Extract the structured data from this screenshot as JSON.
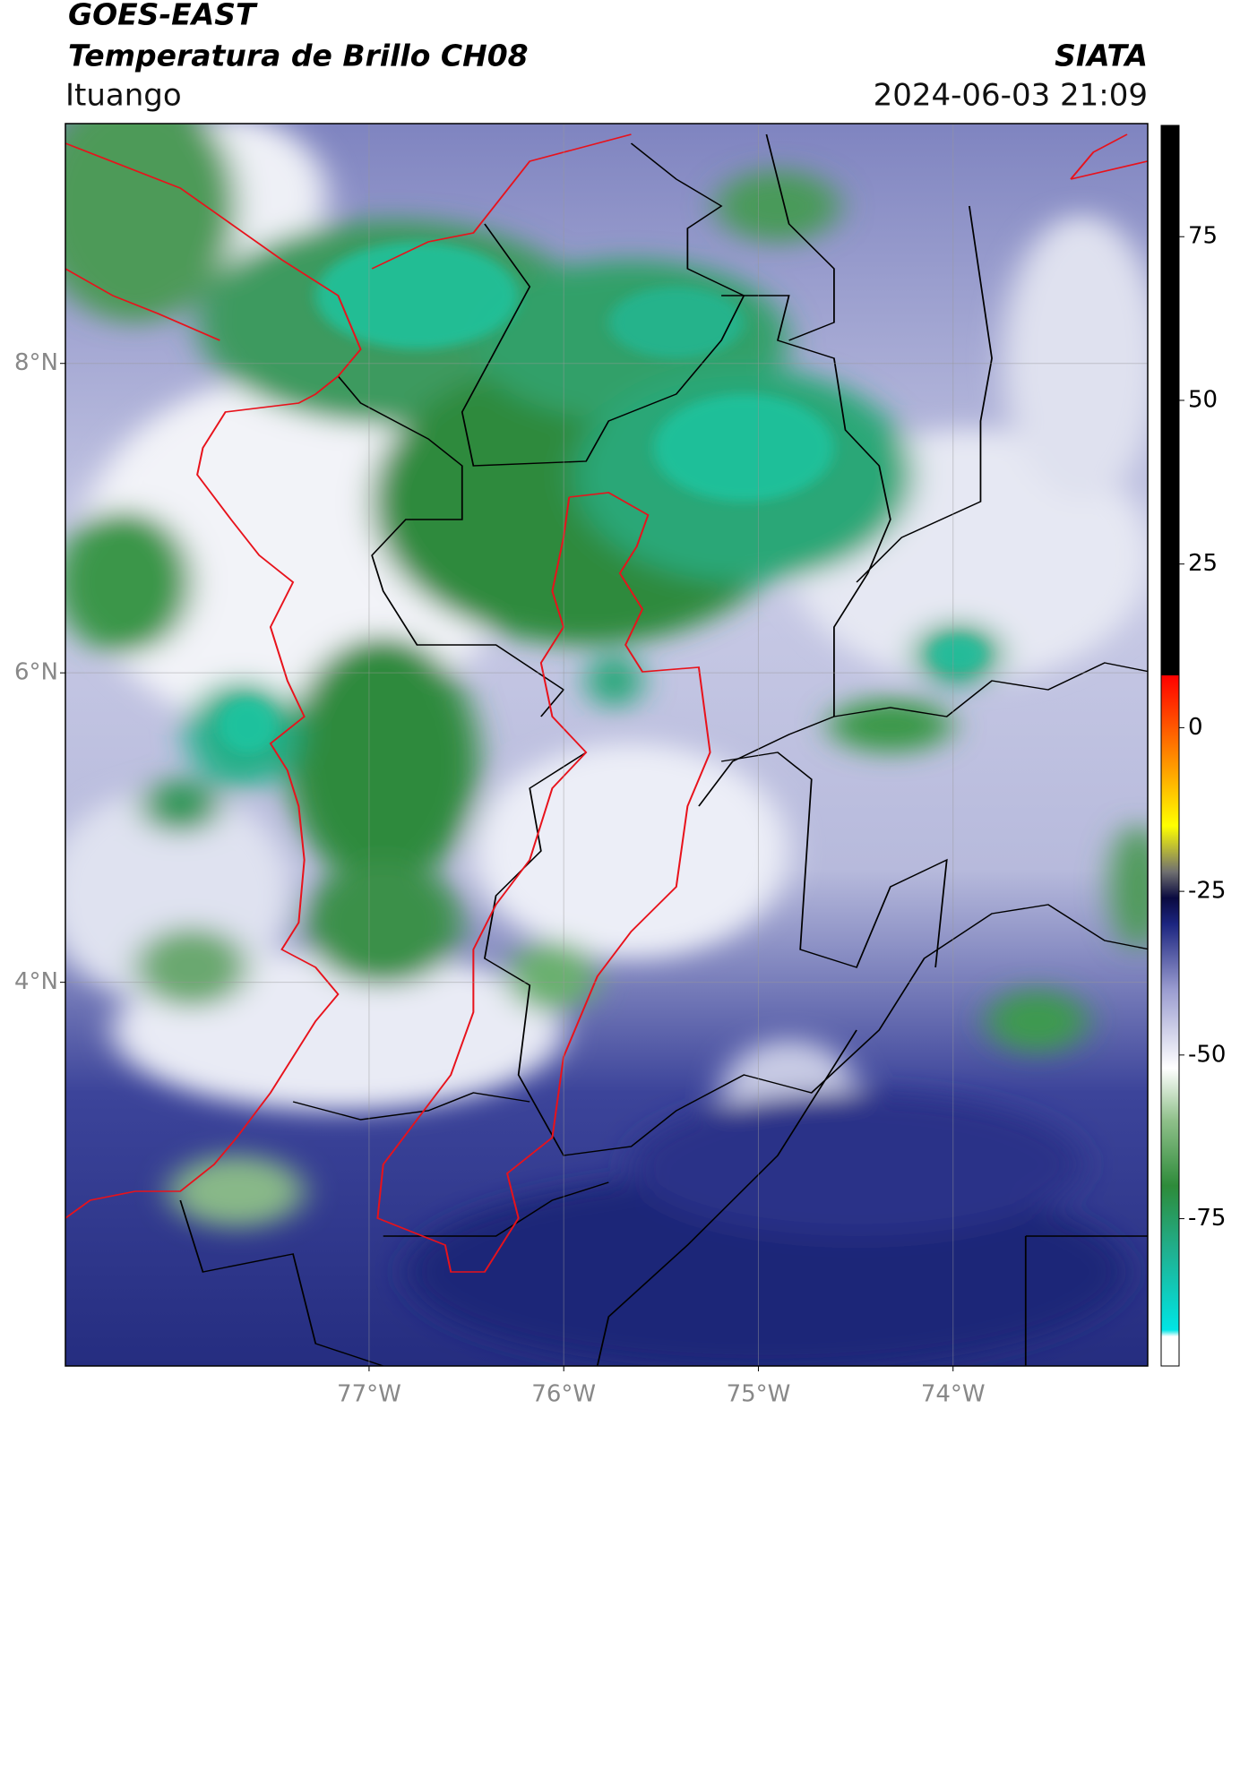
{
  "header": {
    "satellite": "GOES-EAST",
    "product": "Temperatura de Brillo CH08",
    "organization": "SIATA",
    "location": "Ituango",
    "datetime": "2024-06-03 21:09"
  },
  "map": {
    "lat_range": [
      1.52,
      9.55
    ],
    "lon_range": [
      -78.56,
      -73.0
    ],
    "lat_ticks": [
      {
        "value": 4,
        "label": "4°N"
      },
      {
        "value": 6,
        "label": "6°N"
      },
      {
        "value": 8,
        "label": "8°N"
      }
    ],
    "lon_ticks": [
      {
        "value": -77,
        "label": "77°W"
      },
      {
        "value": -76,
        "label": "76°W"
      },
      {
        "value": -75,
        "label": "75°W"
      },
      {
        "value": -74,
        "label": "74°W"
      }
    ]
  },
  "colorbar": {
    "range": [
      -97.5,
      92
    ],
    "ticks": [
      -75,
      -50,
      -25,
      0,
      25,
      50,
      75
    ],
    "stops": [
      {
        "value": -97.5,
        "color": "#ffffff"
      },
      {
        "value": -93,
        "color": "#ffffff"
      },
      {
        "value": -92,
        "color": "#00e5e5"
      },
      {
        "value": -80,
        "color": "#20b090"
      },
      {
        "value": -70,
        "color": "#2e8b3a"
      },
      {
        "value": -60,
        "color": "#8fc08a"
      },
      {
        "value": -52,
        "color": "#ffffff"
      },
      {
        "value": -40,
        "color": "#9a9cd0"
      },
      {
        "value": -30,
        "color": "#1c2580"
      },
      {
        "value": -26,
        "color": "#0a0a40"
      },
      {
        "value": -22,
        "color": "#707070"
      },
      {
        "value": -15,
        "color": "#ffff00"
      },
      {
        "value": -5,
        "color": "#ff9000"
      },
      {
        "value": 5,
        "color": "#ff2000"
      },
      {
        "value": 8,
        "color": "#ff0000"
      },
      {
        "value": 8.01,
        "color": "#000000"
      },
      {
        "value": 92,
        "color": "#000000"
      }
    ]
  }
}
